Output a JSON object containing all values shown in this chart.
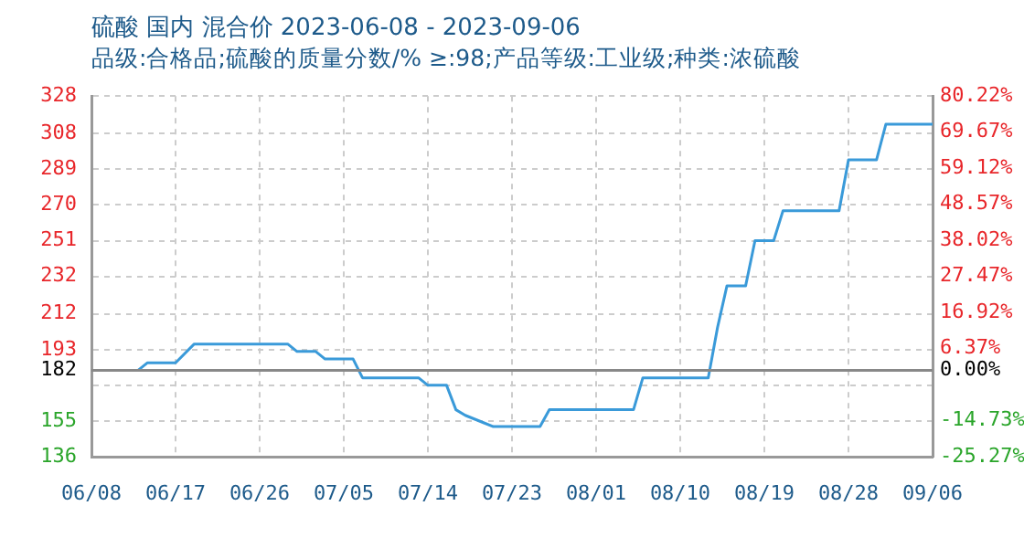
{
  "chart_data": {
    "type": "line",
    "title": "硫酸 国内 混合价 2023-06-08 - 2023-09-06",
    "subtitle": "品级:合格品;硫酸的质量分数/%  ≥:98;产品等级:工业级;种类:浓硫酸",
    "series": [
      {
        "color": "#3a9ad9",
        "x": [
          "2023-06-08",
          "2023-06-13",
          "2023-06-14",
          "2023-06-17",
          "2023-06-19",
          "2023-06-29",
          "2023-06-30",
          "2023-07-02",
          "2023-07-03",
          "2023-07-06",
          "2023-07-07",
          "2023-07-13",
          "2023-07-14",
          "2023-07-16",
          "2023-07-17",
          "2023-07-18",
          "2023-07-20",
          "2023-07-21",
          "2023-07-26",
          "2023-07-27",
          "2023-08-05",
          "2023-08-06",
          "2023-08-13",
          "2023-08-14",
          "2023-08-15",
          "2023-08-17",
          "2023-08-18",
          "2023-08-20",
          "2023-08-21",
          "2023-08-27",
          "2023-08-28",
          "2023-08-31",
          "2023-09-01",
          "2023-09-06"
        ],
        "values": [
          182,
          182,
          186,
          186,
          196,
          196,
          192,
          192,
          188,
          188,
          178,
          178,
          174,
          174,
          161,
          158,
          154,
          152,
          152,
          161,
          161,
          178,
          178,
          205,
          227,
          227,
          251,
          251,
          267,
          267,
          294,
          294,
          313,
          313
        ]
      }
    ],
    "xlim": [
      "2023-06-08",
      "2023-09-06"
    ],
    "xticks": [
      {
        "value": "2023-06-08",
        "label": "06/08"
      },
      {
        "value": "2023-06-17",
        "label": "06/17"
      },
      {
        "value": "2023-06-26",
        "label": "06/26"
      },
      {
        "value": "2023-07-05",
        "label": "07/05"
      },
      {
        "value": "2023-07-14",
        "label": "07/14"
      },
      {
        "value": "2023-07-23",
        "label": "07/23"
      },
      {
        "value": "2023-08-01",
        "label": "08/01"
      },
      {
        "value": "2023-08-10",
        "label": "08/10"
      },
      {
        "value": "2023-08-19",
        "label": "08/19"
      },
      {
        "value": "2023-08-28",
        "label": "08/28"
      },
      {
        "value": "2023-09-06",
        "label": "09/06"
      }
    ],
    "ylim": [
      136,
      328
    ],
    "yticks": [
      136,
      155,
      {
        "value": 174,
        "label": null
      },
      182,
      193,
      212,
      232,
      251,
      270,
      289,
      308,
      328
    ],
    "y2lim": [
      -25.27,
      80.22
    ],
    "y2ticks": [
      {
        "value": -25.27,
        "label": "-25.27%"
      },
      {
        "value": -14.73,
        "label": "-14.73%"
      },
      {
        "value": 0,
        "label": "0.00%"
      },
      {
        "value": 6.37,
        "label": "6.37%"
      },
      {
        "value": 16.92,
        "label": "16.92%"
      },
      {
        "value": 27.47,
        "label": "27.47%"
      },
      {
        "value": 38.02,
        "label": "38.02%"
      },
      {
        "value": 48.57,
        "label": "48.57%"
      },
      {
        "value": 59.12,
        "label": "59.12%"
      },
      {
        "value": 69.67,
        "label": "69.67%"
      },
      {
        "value": 80.22,
        "label": "80.22%"
      }
    ],
    "ref_lines": [
      {
        "axis": "y",
        "value": 182,
        "color": "#888888"
      }
    ],
    "grid": true
  }
}
